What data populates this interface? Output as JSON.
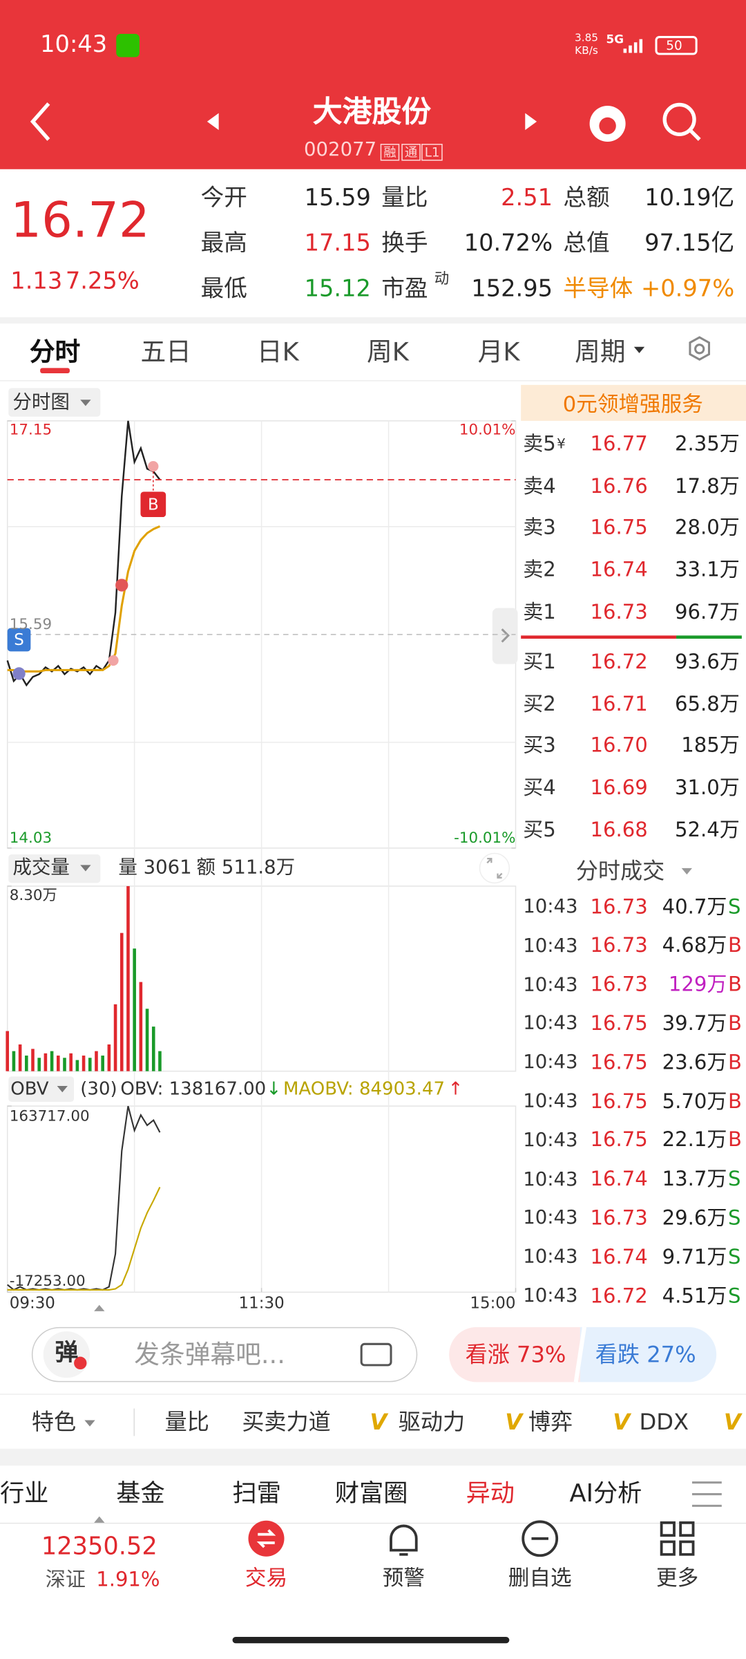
{
  "status_bar": {
    "time": "10:43",
    "net_speed": [
      "3.85",
      "KB/s"
    ],
    "network": "5G",
    "battery": "50"
  },
  "header": {
    "title": "大港股份",
    "code": "002077",
    "badges": [
      "融",
      "通",
      "L1"
    ]
  },
  "quote": {
    "price": "16.72",
    "change": "1.13",
    "change_pct": "7.25%",
    "stats": [
      [
        {
          "label": "今开",
          "value": "15.59",
          "tone": "flat"
        },
        {
          "label": "量比",
          "value": "2.51",
          "tone": "up"
        },
        {
          "label": "总额",
          "value": "10.19亿",
          "tone": "flat"
        }
      ],
      [
        {
          "label": "最高",
          "value": "17.15",
          "tone": "up"
        },
        {
          "label": "换手",
          "value": "10.72%",
          "tone": "flat"
        },
        {
          "label": "总值",
          "value": "97.15亿",
          "tone": "flat"
        }
      ],
      [
        {
          "label": "最低",
          "value": "15.12",
          "tone": "down"
        },
        {
          "label": "市盈",
          "sup": "动",
          "value": "152.95",
          "tone": "flat"
        },
        {
          "label": "半导体",
          "value": "+0.97%",
          "tone": "sector",
          "label_tone": "sector"
        }
      ]
    ]
  },
  "tabs": {
    "items": [
      "分时",
      "五日",
      "日K",
      "周K",
      "月K",
      "周期"
    ],
    "active": 0
  },
  "intraday": {
    "menu": "分时图",
    "x": [
      "09:30",
      "09:33",
      "09:36",
      "09:39",
      "09:42",
      "09:45",
      "09:48",
      "09:51",
      "09:54",
      "09:57",
      "10:00",
      "10:03",
      "10:06",
      "10:09",
      "10:12",
      "10:15",
      "10:18",
      "10:21",
      "10:24",
      "10:27",
      "10:30",
      "10:33",
      "10:36",
      "10:39",
      "10:42"
    ],
    "xlim": [
      "09:30",
      "15:00"
    ],
    "xticks": [
      "09:30",
      "11:30",
      "15:00"
    ],
    "ylim": [
      14.03,
      17.15
    ],
    "yticks": [
      17.15,
      15.59,
      14.03
    ],
    "y2lim": [
      -10.01,
      10.01
    ],
    "y2ticks": [
      {
        "value": 10.01,
        "label": "10.01%"
      },
      {
        "value": -10.01,
        "label": "-10.01%"
      }
    ],
    "series": [
      {
        "name": "价格",
        "color": "#222222",
        "values": [
          15.4,
          15.25,
          15.3,
          15.22,
          15.28,
          15.3,
          15.35,
          15.32,
          15.36,
          15.3,
          15.34,
          15.32,
          15.35,
          15.3,
          15.36,
          15.33,
          15.4,
          15.75,
          16.6,
          17.15,
          16.85,
          16.95,
          16.8,
          16.78,
          16.72
        ]
      },
      {
        "name": "均价",
        "color": "#e0a100",
        "values": [
          15.33,
          15.33,
          15.32,
          15.32,
          15.32,
          15.32,
          15.33,
          15.33,
          15.33,
          15.33,
          15.33,
          15.33,
          15.33,
          15.33,
          15.33,
          15.33,
          15.36,
          15.45,
          15.8,
          16.05,
          16.2,
          16.28,
          16.33,
          16.36,
          16.38
        ]
      }
    ],
    "markers": {
      "sell": "S",
      "buy": "B"
    }
  },
  "volume": {
    "menu": "成交量",
    "stats": [
      "量 3061",
      "额 511.8万"
    ],
    "ylim": [
      0,
      83000
    ],
    "yticks": [
      {
        "value": 83000,
        "label": "8.30万"
      }
    ],
    "values": [
      18000,
      9000,
      12000,
      7000,
      10000,
      6000,
      8000,
      9000,
      7000,
      6000,
      8000,
      5000,
      7000,
      6000,
      9000,
      7000,
      12000,
      30000,
      62000,
      83000,
      55000,
      40000,
      28000,
      20000,
      9000
    ],
    "colors": [
      "#e0282e",
      "#1a9a2a",
      "#e0282e",
      "#1a9a2a",
      "#e0282e",
      "#1a9a2a",
      "#e0282e",
      "#1a9a2a",
      "#e0282e",
      "#1a9a2a",
      "#e0282e",
      "#1a9a2a",
      "#e0282e",
      "#1a9a2a",
      "#e0282e",
      "#1a9a2a",
      "#e0282e",
      "#e0282e",
      "#e0282e",
      "#e0282e",
      "#1a9a2a",
      "#e0282e",
      "#1a9a2a",
      "#1a9a2a",
      "#1a9a2a"
    ]
  },
  "obv": {
    "menu": "OBV",
    "period": "(30)",
    "obv_label": "OBV: 138167.00",
    "obv_arrow": "↓",
    "maobv_label": "MAOBV: 84903.47",
    "maobv_arrow": "↑",
    "ylim": [
      -17253,
      163717
    ],
    "yticks": [
      {
        "value": 163717,
        "label": "163717.00"
      },
      {
        "value": -17253,
        "label": "-17253.00"
      }
    ],
    "series": [
      {
        "name": "OBV",
        "color": "#333333",
        "values": [
          -10000,
          -15000,
          -12000,
          -15000,
          -14000,
          -15000,
          -14000,
          -15000,
          -14000,
          -15000,
          -14000,
          -15000,
          -14000,
          -15000,
          -14000,
          -15000,
          -12000,
          20000,
          120000,
          163717,
          140000,
          155000,
          145000,
          150000,
          138167
        ]
      },
      {
        "name": "MAOBV",
        "color": "#c8a800",
        "values": [
          -15000,
          -15000,
          -15000,
          -15000,
          -15000,
          -15000,
          -15000,
          -15000,
          -15000,
          -15000,
          -15000,
          -15000,
          -15000,
          -15000,
          -15000,
          -15000,
          -15000,
          -14000,
          -10000,
          5000,
          25000,
          45000,
          60000,
          72000,
          84903.47
        ]
      }
    ]
  },
  "order_book": {
    "promo": "0元领增强服务",
    "currency_mark": "¥",
    "asks": [
      {
        "label": "卖5",
        "price": "16.77",
        "volume": "2.35万"
      },
      {
        "label": "卖4",
        "price": "16.76",
        "volume": "17.8万"
      },
      {
        "label": "卖3",
        "price": "16.75",
        "volume": "28.0万"
      },
      {
        "label": "卖2",
        "price": "16.74",
        "volume": "33.1万"
      },
      {
        "label": "卖1",
        "price": "16.73",
        "volume": "96.7万"
      }
    ],
    "bids": [
      {
        "label": "买1",
        "price": "16.72",
        "volume": "93.6万"
      },
      {
        "label": "买2",
        "price": "16.71",
        "volume": "65.8万"
      },
      {
        "label": "买3",
        "price": "16.70",
        "volume": "185万"
      },
      {
        "label": "买4",
        "price": "16.69",
        "volume": "31.0万"
      },
      {
        "label": "买5",
        "price": "16.68",
        "volume": "52.4万"
      }
    ]
  },
  "trades": {
    "title": "分时成交",
    "rows": [
      {
        "time": "10:43",
        "price": "16.73",
        "volume": "40.7万",
        "side": "S"
      },
      {
        "time": "10:43",
        "price": "16.73",
        "volume": "4.68万",
        "side": "B"
      },
      {
        "time": "10:43",
        "price": "16.73",
        "volume": "129万",
        "side": "B",
        "large": true
      },
      {
        "time": "10:43",
        "price": "16.75",
        "volume": "39.7万",
        "side": "B"
      },
      {
        "time": "10:43",
        "price": "16.75",
        "volume": "23.6万",
        "side": "B"
      },
      {
        "time": "10:43",
        "price": "16.75",
        "volume": "5.70万",
        "side": "B"
      },
      {
        "time": "10:43",
        "price": "16.75",
        "volume": "22.1万",
        "side": "B"
      },
      {
        "time": "10:43",
        "price": "16.74",
        "volume": "13.7万",
        "side": "S"
      },
      {
        "time": "10:43",
        "price": "16.73",
        "volume": "29.6万",
        "side": "S"
      },
      {
        "time": "10:43",
        "price": "16.74",
        "volume": "9.71万",
        "side": "S"
      },
      {
        "time": "10:43",
        "price": "16.72",
        "volume": "4.51万",
        "side": "S"
      }
    ]
  },
  "danmaku": {
    "badge": "弹",
    "placeholder": "发条弹幕吧...",
    "bull": "看涨 73%",
    "bear": "看跌 27%"
  },
  "features": {
    "items": [
      {
        "label": "特色",
        "menu": true
      },
      {
        "label": "量比"
      },
      {
        "label": "买卖力道"
      },
      {
        "label": "驱动力",
        "mark": "V"
      },
      {
        "label": "博弈",
        "mark": "V"
      },
      {
        "label": "DDX",
        "mark": "V"
      },
      {
        "mark": "V"
      }
    ]
  },
  "nav_tabs": {
    "items": [
      "行业",
      "基金",
      "扫雷",
      "财富圈",
      "异动",
      "AI分析"
    ],
    "active": 4
  },
  "bottom": {
    "index_value": "12350.52",
    "index_name": "深证",
    "index_change": "1.91%",
    "items": [
      "交易",
      "预警",
      "删自选",
      "更多"
    ]
  }
}
